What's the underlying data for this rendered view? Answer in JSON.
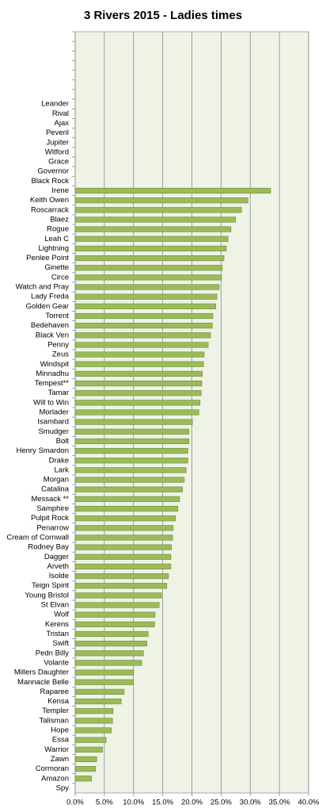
{
  "chart_data": {
    "type": "bar",
    "orientation": "horizontal",
    "title": "3 Rivers 2015 - Ladies times",
    "categories": [
      null,
      null,
      null,
      null,
      null,
      null,
      null,
      "Leander",
      "Rival",
      "Ajax",
      "Peveril",
      "Jupiter",
      "Witford",
      "Grace",
      "Governor",
      "Black Rock",
      "Irene",
      "Keith Owen",
      "Roscarrack",
      "Blaez",
      "Rogue",
      "Leah C",
      "Lightning",
      "Penlee Point",
      "Ginette",
      "Circe",
      "Watch and Pray",
      "Lady Freda",
      "Golden Gear",
      "Torrent",
      "Bedehaven",
      "Black Ven",
      "Penny",
      "Zeus",
      "Windspit",
      "Minnadhu",
      "Tempest**",
      "Tamar",
      "Will to Win",
      "Morlader",
      "Isambard",
      "Smudger",
      "Bolt",
      "Henry Smardon",
      "Drake",
      "Lark",
      "Morgan",
      "Catalina",
      "Messack **",
      "Samphire",
      "Pulpit Rock",
      "Penarrow",
      "Cream of Cornwall",
      "Rodney Bay",
      "Dagger",
      "Arveth",
      "Isolde",
      "Teign Spirit",
      "Young Bristol",
      "St Elvan",
      "Wolf",
      "Kerens",
      "Tristan",
      "Swift",
      "Pedn Billy",
      "Volante",
      "Millers Daughter",
      "Mannacle Belle",
      "Raparee",
      "Kensa",
      "Templer",
      "Talisman",
      "Hope",
      "Essa",
      "Warrior",
      "Zawn",
      "Cormoran",
      "Amazon",
      "Spy"
    ],
    "values": [
      null,
      null,
      null,
      null,
      null,
      null,
      null,
      null,
      null,
      null,
      null,
      null,
      null,
      null,
      null,
      null,
      33.5,
      29.6,
      28.5,
      27.5,
      26.7,
      26.2,
      25.9,
      25.5,
      25.2,
      25.1,
      24.7,
      24.3,
      24.1,
      23.6,
      23.5,
      23.2,
      22.8,
      22.1,
      22.0,
      21.8,
      21.7,
      21.6,
      21.4,
      21.2,
      20.1,
      19.5,
      19.5,
      19.3,
      19.3,
      19.0,
      18.7,
      18.4,
      17.9,
      17.6,
      17.2,
      16.8,
      16.7,
      16.5,
      16.4,
      16.4,
      16.0,
      15.7,
      14.8,
      14.4,
      13.7,
      13.6,
      12.5,
      12.3,
      11.7,
      11.4,
      10.0,
      10.0,
      8.4,
      7.9,
      6.5,
      6.4,
      6.2,
      5.3,
      4.7,
      3.7,
      3.5,
      2.8,
      null
    ],
    "color": "#9bbb59",
    "edge_color": "#71893f",
    "plot_background": "#eef3e6",
    "xlim": [
      0,
      40
    ],
    "xticks": [
      {
        "value": 0,
        "label": "0.0%"
      },
      {
        "value": 5,
        "label": "5.0%"
      },
      {
        "value": 10,
        "label": "10.0%"
      },
      {
        "value": 15,
        "label": "15.0%"
      },
      {
        "value": 20,
        "label": "20.0%"
      },
      {
        "value": 25,
        "label": "25.0%"
      },
      {
        "value": 30,
        "label": "30.0%"
      },
      {
        "value": 35,
        "label": "35.0%"
      },
      {
        "value": 40,
        "label": "40.0%"
      }
    ],
    "grid": true
  }
}
